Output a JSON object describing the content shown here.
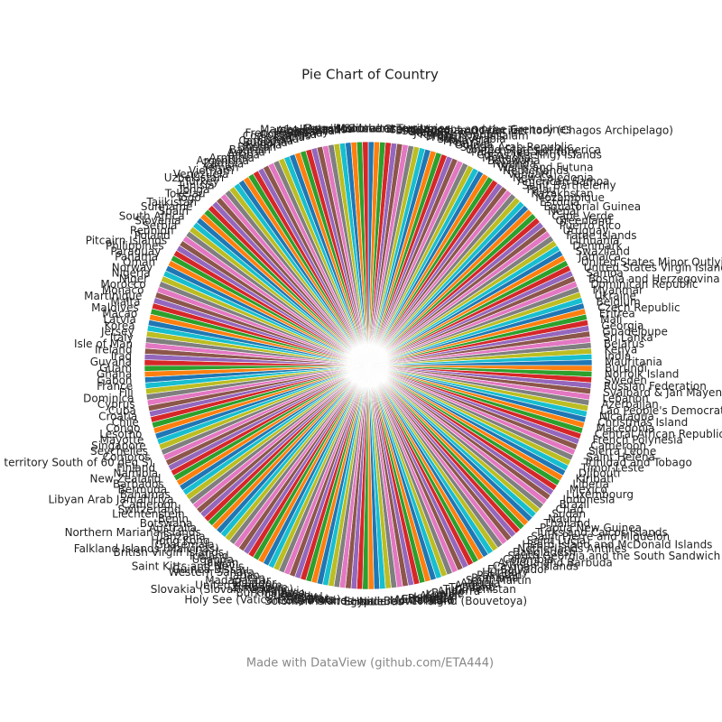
{
  "chart_data": {
    "type": "pie",
    "title": "Pie Chart of Country",
    "footer": "Made with DataView (github.com/ETA444)",
    "colors": [
      "#1f77b4",
      "#ff7f0e",
      "#2ca02c",
      "#d62728",
      "#9467bd",
      "#8c564b",
      "#e377c2",
      "#7f7f7f",
      "#bcbd22",
      "#17becf"
    ],
    "categories": [
      "Gibraltar",
      "French Southern Territories",
      "Grenada",
      "Saint Vincent and the Grenadines",
      "British Indian Ocean Territory (Chagos Archipelago)",
      "Sao Tome and Principe",
      "Greece",
      "Jordan",
      "Kyrgyz Republic",
      "Brunei Darussalam",
      "Haiti",
      "Saudi Arabia",
      "Malaysia",
      "Peru",
      "Guinea",
      "Syrian Arab Republic",
      "United States of America",
      "Palestinian Territory",
      "Cocos (Keeling) Islands",
      "Mongolia",
      "Botswana",
      "Rwanda",
      "Wallis and Futuna",
      "Netherlands",
      "Vanuatu",
      "New Caledonia",
      "American Samoa",
      "Saint Barthelemy",
      "Palau",
      "Kazakhstan",
      "Mozambique",
      "Estonia",
      "Equatorial Guinea",
      "Nepal",
      "Cape Verde",
      "Greenland",
      "Puerto Rico",
      "Uruguay",
      "Faroe Islands",
      "Lithuania",
      "Denmark",
      "Swaziland",
      "Jamaica",
      "United States Minor Outlying Islands",
      "United States Virgin Islands",
      "Samoa",
      "Bosnia and Herzegovina",
      "Dominican Republic",
      "Myanmar",
      "Ukraine",
      "Belgium",
      "Czech Republic",
      "Eritrea",
      "Mali",
      "Georgia",
      "Guadeloupe",
      "Sri Lanka",
      "Belarus",
      "Kenya",
      "India",
      "Mauritania",
      "Burundi",
      "Norfolk Island",
      "Sweden",
      "Russian Federation",
      "Svalbard & Jan Mayen Islands",
      "Lebanon",
      "Azerbaijan",
      "Lao People's Democratic Republic",
      "Nicaragua",
      "Christmas Island",
      "Macedonia",
      "Central African Republic",
      "French Polynesia",
      "Cameroon",
      "Sierra Leone",
      "Saint Helena",
      "Trinidad and Tobago",
      "Timor-Leste",
      "Djibouti",
      "Kiribati",
      "Liberia",
      "Mexico",
      "Luxembourg",
      "Indonesia",
      "Brazil",
      "Chad",
      "Sudan",
      "Nauru",
      "Thailand",
      "Papua New Guinea",
      "Turks and Caicos Islands",
      "Saint Pierre and Miquelon",
      "Saint Lucia",
      "Heard Island and McDonald Islands",
      "Netherlands Antilles",
      "Bangladesh",
      "South Georgia and the South Sandwich Islands",
      "Colombia",
      "Antigua and Barbuda",
      "Cayman Islands",
      "El Salvador",
      "Hungary",
      "Pakistan",
      "Romania",
      "Saint Martin",
      "Albania",
      "Angola",
      "Thailand ",
      "Turkmenistan",
      "Andorra",
      "Belize",
      "Kuwait",
      "Algeria",
      "Israel",
      "Portugal",
      "Ethiopia",
      "Micronesia",
      "Montenegro",
      "Bouvet Island (Bouvetoya)",
      "Honduras",
      "Niue",
      "Somalia",
      "Egypt",
      "Solomon Islands",
      "Cote d'Ivoire",
      "Holy See (Vatican City State)",
      "Gambia",
      "Qatar",
      "Senegal",
      "Guernsey",
      "Tuvalu",
      "Burkina Faso",
      "Malawi",
      "Slovakia (Slovak Republic)",
      "Zimbabwe",
      "United Kingdom",
      "Ecuador",
      "Madagascar",
      "Iran",
      "Japan",
      "Western Sahara",
      "Guinea-Bissau",
      "Saint Kitts and Nevis",
      "Taiwan",
      "Uganda",
      "Iceland",
      "British Virgin Islands",
      "Falkland Islands (Malvinas)",
      "Guatemala",
      "Hong Kong",
      "Tanzania",
      "Northern Mariana Islands",
      "Australia",
      "Botswana ",
      "Benin",
      "Liechtenstein",
      "Switzerland",
      "Cameroon ",
      "Libyan Arab Jamahiriya",
      "Bahamas",
      "Bermuda",
      "Barbados",
      "New Zealand",
      "Namibia",
      "Finland",
      "Antarctica (the territory South of 60 deg S)",
      "Comoros",
      "Seychelles",
      "Singapore",
      "Mayotte",
      "Lesotho",
      "Congo",
      "Chile",
      "Croatia",
      "Cuba",
      "Cyprus",
      "Dominica",
      "Fiji",
      "France",
      "Gabon",
      "Ghana",
      "Guam",
      "Guyana",
      "Iraq",
      "Ireland",
      "Isle of Man",
      "Italy",
      "Jersey",
      "Korea",
      "Latvia",
      "Macao",
      "Maldives",
      "Malta",
      "Martinique",
      "Monaco",
      "Morocco",
      "Niger",
      "Nigeria",
      "Norway",
      "Oman",
      "Panama",
      "Paraguay",
      "Philippines",
      "Pitcairn Islands",
      "Poland",
      "Reunion",
      "Serbia",
      "Slovenia",
      "South Africa",
      "Spain",
      "Suriname",
      "Tajikistan",
      "Togo",
      "Tokelau",
      "Tonga",
      "Tunisia",
      "Turkey",
      "Uzbekistan",
      "Venezuela",
      "Vietnam",
      "Yemen",
      "Zambia",
      "Argentina",
      "Armenia",
      "Aruba",
      "Austria",
      "Bahrain",
      "Bhutan",
      "Bolivia",
      "Bulgaria",
      "Cambodia",
      "Canada",
      "China",
      "Cook Islands",
      "Costa Rica",
      "French Guiana",
      "Germany",
      "Anguilla",
      "Afghanistan",
      "Marshall Islands",
      "Mauritius",
      "Moldova",
      "Montserrat"
    ]
  }
}
